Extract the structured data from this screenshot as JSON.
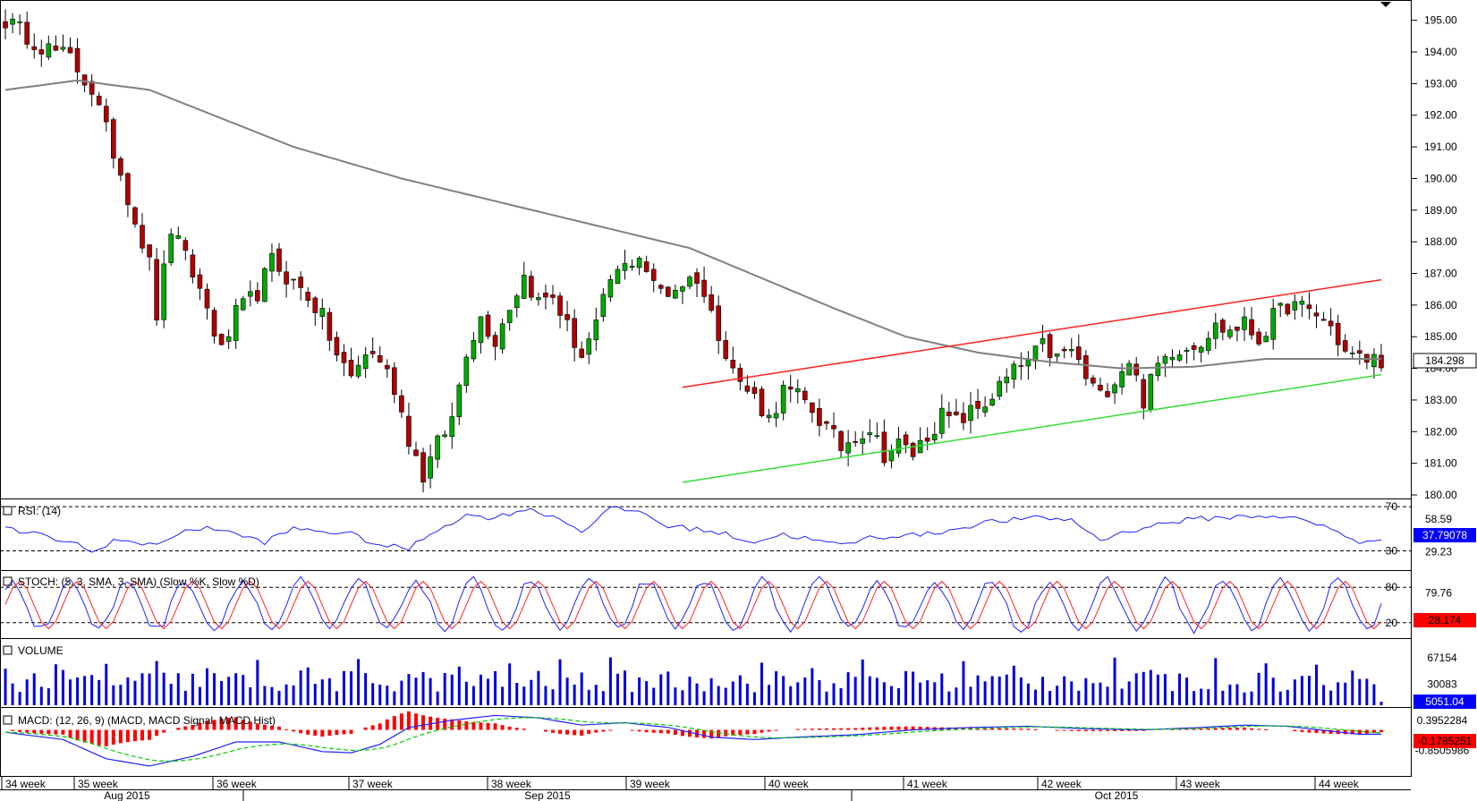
{
  "colors": {
    "background": "#ffffff",
    "candle_up": "#00aa00",
    "candle_down": "#b00000",
    "sma": "#808080",
    "trend_upper": "#ff2020",
    "trend_lower": "#33dd33",
    "rsi": "#2020ff",
    "stoch_k": "#2020ff",
    "stoch_d": "#ff2020",
    "volume": "#0000dd",
    "macd": "#2020ff",
    "macd_signal": "#00cc00",
    "macd_hist": "#ff0000",
    "grid": "#000000",
    "label_current": "#0000ff",
    "label_macd": "#ff0000"
  },
  "panels": {
    "rsi": {
      "label": "RSI: (14)",
      "ticks": [
        "70",
        "58.59",
        "30",
        "29.23"
      ],
      "current": "37.79078"
    },
    "stoch": {
      "label": "STOCH: (5, 3, SMA, 3, SMA) (Slow %K, Slow %D)",
      "ticks": [
        "80",
        "79.76",
        "20"
      ],
      "current": "28.174"
    },
    "volume": {
      "label": "VOLUME",
      "ticks": [
        "67154",
        "30083"
      ],
      "current": "5051.04"
    },
    "macd": {
      "label": "MACD: (12, 26, 9) (MACD, MACD Signal, MACD Hist)",
      "ticks": [
        "0.3952284",
        "-0.8505986"
      ],
      "current": "-0.1785251"
    }
  },
  "price_current_label": "184.298",
  "chart_data": {
    "type": "candlestick",
    "title": "",
    "ylim": [
      180,
      195.5
    ],
    "y_ticks": [
      180,
      181,
      182,
      183,
      184,
      185,
      186,
      187,
      188,
      189,
      190,
      191,
      192,
      193,
      194,
      195
    ],
    "y_tick_labels": [
      "180.00",
      "181.00",
      "182.00",
      "183.00",
      "184.00",
      "185.00",
      "186.00",
      "187.00",
      "188.00",
      "189.00",
      "190.00",
      "191.00",
      "192.00",
      "193.00",
      "194.00",
      "195.00"
    ],
    "week_labels": [
      "34 week",
      "35 week",
      "36 week",
      "37 week",
      "38 week",
      "39 week",
      "40 week",
      "41 week",
      "42 week",
      "43 week",
      "44 week"
    ],
    "month_labels": [
      "Aug 2015",
      "Sep 2015",
      "Oct 2015"
    ],
    "price_anchors": [
      [
        0,
        195.0
      ],
      [
        5,
        194.2
      ],
      [
        9,
        193.8
      ],
      [
        12,
        192.8
      ],
      [
        14,
        191.5
      ],
      [
        16,
        190.2
      ],
      [
        18,
        188.7
      ],
      [
        20,
        187.3
      ],
      [
        21,
        185.7
      ],
      [
        23,
        188.4
      ],
      [
        26,
        187.0
      ],
      [
        28,
        185.9
      ],
      [
        30,
        184.5
      ],
      [
        32,
        185.7
      ],
      [
        35,
        186.4
      ],
      [
        37,
        187.4
      ],
      [
        39,
        186.9
      ],
      [
        42,
        186.3
      ],
      [
        44,
        185.6
      ],
      [
        46,
        184.4
      ],
      [
        48,
        183.7
      ],
      [
        50,
        184.5
      ],
      [
        52,
        184.3
      ],
      [
        54,
        183.4
      ],
      [
        56,
        181.8
      ],
      [
        58,
        180.6
      ],
      [
        60,
        181.6
      ],
      [
        62,
        182.4
      ],
      [
        64,
        184.6
      ],
      [
        66,
        185.6
      ],
      [
        68,
        184.9
      ],
      [
        70,
        186.0
      ],
      [
        72,
        186.9
      ],
      [
        74,
        186.1
      ],
      [
        76,
        186.3
      ],
      [
        78,
        185.3
      ],
      [
        80,
        184.4
      ],
      [
        82,
        185.3
      ],
      [
        84,
        186.8
      ],
      [
        86,
        187.2
      ],
      [
        88,
        187.6
      ],
      [
        90,
        186.6
      ],
      [
        92,
        186.4
      ],
      [
        94,
        186.7
      ],
      [
        96,
        186.9
      ],
      [
        98,
        185.7
      ],
      [
        100,
        184.6
      ],
      [
        102,
        183.5
      ],
      [
        104,
        183.1
      ],
      [
        106,
        182.4
      ],
      [
        108,
        183.3
      ],
      [
        110,
        183.1
      ],
      [
        112,
        182.7
      ],
      [
        114,
        182.1
      ],
      [
        116,
        181.5
      ],
      [
        118,
        181.9
      ],
      [
        120,
        182.1
      ],
      [
        122,
        181.3
      ],
      [
        124,
        181.6
      ],
      [
        126,
        181.3
      ],
      [
        128,
        181.9
      ],
      [
        130,
        182.5
      ],
      [
        132,
        182.3
      ],
      [
        134,
        182.6
      ],
      [
        136,
        182.9
      ],
      [
        138,
        183.4
      ],
      [
        140,
        183.9
      ],
      [
        142,
        184.2
      ],
      [
        144,
        184.7
      ],
      [
        146,
        184.3
      ],
      [
        148,
        184.6
      ],
      [
        150,
        183.7
      ],
      [
        152,
        183.1
      ],
      [
        154,
        183.7
      ],
      [
        156,
        184.3
      ],
      [
        158,
        183.0
      ],
      [
        160,
        184.1
      ],
      [
        162,
        184.6
      ],
      [
        164,
        184.7
      ],
      [
        166,
        184.9
      ],
      [
        168,
        185.3
      ],
      [
        170,
        185.2
      ],
      [
        172,
        185.4
      ],
      [
        174,
        184.9
      ],
      [
        176,
        185.6
      ],
      [
        178,
        186.0
      ],
      [
        180,
        185.9
      ],
      [
        182,
        185.7
      ],
      [
        184,
        185.3
      ],
      [
        186,
        184.5
      ],
      [
        188,
        184.3
      ]
    ],
    "sma_anchors": [
      [
        0,
        192.8
      ],
      [
        10,
        193.1
      ],
      [
        20,
        192.8
      ],
      [
        40,
        191.0
      ],
      [
        55,
        190.0
      ],
      [
        75,
        188.9
      ],
      [
        95,
        187.8
      ],
      [
        115,
        185.9
      ],
      [
        125,
        185.0
      ],
      [
        135,
        184.5
      ],
      [
        145,
        184.2
      ],
      [
        155,
        184.0
      ],
      [
        165,
        184.05
      ],
      [
        175,
        184.3
      ],
      [
        188,
        184.3
      ]
    ],
    "trendlines": [
      {
        "name": "upper",
        "from": [
          94,
          183.4
        ],
        "to": [
          191,
          186.8
        ]
      },
      {
        "name": "lower",
        "from": [
          94,
          180.4
        ],
        "to": [
          191,
          183.8
        ]
      }
    ],
    "rsi_anchors": [
      [
        0,
        50
      ],
      [
        5,
        44
      ],
      [
        10,
        36
      ],
      [
        12,
        28
      ],
      [
        15,
        40
      ],
      [
        20,
        35
      ],
      [
        24,
        45
      ],
      [
        28,
        52
      ],
      [
        32,
        45
      ],
      [
        36,
        38
      ],
      [
        40,
        50
      ],
      [
        44,
        48
      ],
      [
        48,
        45
      ],
      [
        52,
        35
      ],
      [
        56,
        32
      ],
      [
        60,
        50
      ],
      [
        64,
        62
      ],
      [
        68,
        60
      ],
      [
        72,
        68
      ],
      [
        76,
        62
      ],
      [
        80,
        48
      ],
      [
        84,
        68
      ],
      [
        88,
        66
      ],
      [
        92,
        52
      ],
      [
        96,
        50
      ],
      [
        100,
        45
      ],
      [
        104,
        38
      ],
      [
        108,
        45
      ],
      [
        112,
        40
      ],
      [
        116,
        35
      ],
      [
        120,
        42
      ],
      [
        124,
        44
      ],
      [
        128,
        45
      ],
      [
        132,
        50
      ],
      [
        136,
        56
      ],
      [
        140,
        58
      ],
      [
        144,
        60
      ],
      [
        148,
        58
      ],
      [
        152,
        40
      ],
      [
        156,
        48
      ],
      [
        160,
        54
      ],
      [
        164,
        58
      ],
      [
        168,
        60
      ],
      [
        172,
        61
      ],
      [
        176,
        62
      ],
      [
        180,
        58
      ],
      [
        184,
        50
      ],
      [
        188,
        38
      ]
    ],
    "rsi_ylim": [
      15,
      75
    ],
    "stoch_ylim": [
      0,
      100
    ],
    "stoch_period": 8,
    "stoch_offset": 1,
    "volume_ylim": [
      0,
      90000
    ],
    "macd_ylim": [
      -1.8,
      0.8
    ],
    "macd_anchors": [
      [
        0,
        -0.1
      ],
      [
        8,
        -0.4
      ],
      [
        14,
        -1.2
      ],
      [
        20,
        -1.5
      ],
      [
        26,
        -1.1
      ],
      [
        32,
        -0.5
      ],
      [
        38,
        -0.5
      ],
      [
        44,
        -0.9
      ],
      [
        48,
        -0.95
      ],
      [
        52,
        -0.6
      ],
      [
        56,
        0.1
      ],
      [
        62,
        0.4
      ],
      [
        68,
        0.6
      ],
      [
        74,
        0.5
      ],
      [
        80,
        0.2
      ],
      [
        86,
        0.3
      ],
      [
        92,
        0.1
      ],
      [
        98,
        -0.3
      ],
      [
        104,
        -0.4
      ],
      [
        110,
        -0.3
      ],
      [
        118,
        -0.2
      ],
      [
        126,
        0.0
      ],
      [
        134,
        0.1
      ],
      [
        142,
        0.15
      ],
      [
        150,
        0.05
      ],
      [
        158,
        0.0
      ],
      [
        166,
        0.1
      ],
      [
        172,
        0.2
      ],
      [
        178,
        0.15
      ],
      [
        184,
        -0.05
      ],
      [
        188,
        -0.18
      ]
    ]
  }
}
